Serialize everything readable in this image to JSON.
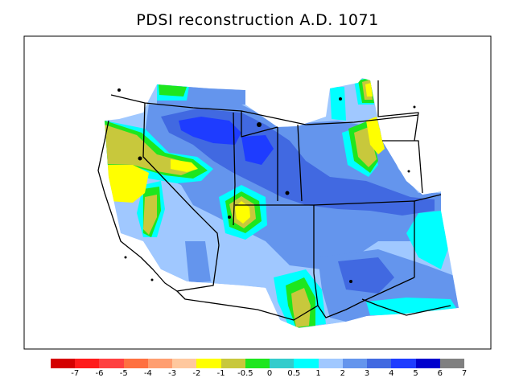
{
  "title": "PDSI reconstruction A.D. 1071",
  "legend": {
    "colors": [
      "#d40000",
      "#ff1a1a",
      "#ff4040",
      "#ff7040",
      "#ff9e70",
      "#ffc89e",
      "#ffff00",
      "#c8c83c",
      "#1ee61e",
      "#33cccc",
      "#00ffff",
      "#a0c8ff",
      "#6495ed",
      "#4169e1",
      "#1e3cff",
      "#0000cd",
      "#808080"
    ],
    "labels": [
      "-7",
      "-6",
      "-5",
      "-4",
      "-3",
      "-2",
      "-1",
      "-0.5",
      "0",
      "0.5",
      "1",
      "2",
      "3",
      "4",
      "5",
      "6",
      "7"
    ]
  },
  "palette": {
    "bg": "#a0c8ff",
    "c3": "#6495ed",
    "c4": "#4169e1",
    "c5": "#1e3cff",
    "cyan": "#00ffff",
    "teal": "#33cccc",
    "green": "#1ee61e",
    "olive": "#c8c83c",
    "yellow": "#ffff00"
  }
}
